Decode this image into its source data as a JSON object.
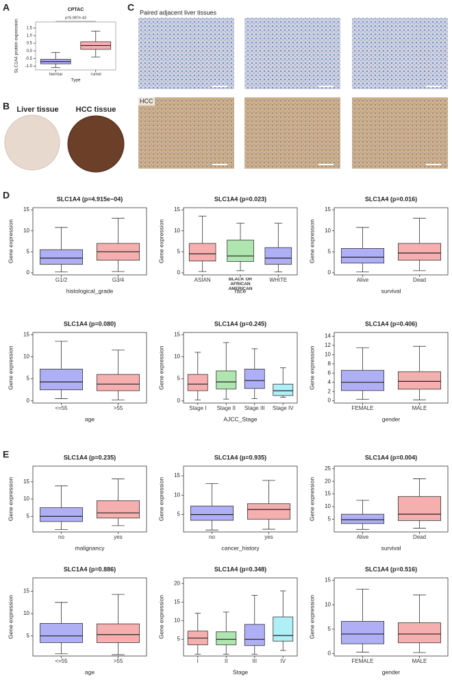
{
  "figure": {
    "panel_labels": [
      "A",
      "B",
      "C",
      "D",
      "E"
    ],
    "image_labels": {
      "liver": "Liver tissue",
      "hcc_b": "HCC tissue",
      "paired": "Paired adjacent liver tissues",
      "hcc_c": "HCC"
    }
  },
  "chart_data": [
    {
      "type": "box",
      "title": "CPTAC",
      "annotation": "p=5.087e-43",
      "ylabel": "SLC1A4 protein expression",
      "xlabel": "Type",
      "categories": [
        "Normal",
        "Tumor"
      ],
      "colors": [
        "#2323e0",
        "#e02020"
      ],
      "boxes": [
        {
          "q1": -0.85,
          "median": -0.7,
          "q3": -0.55,
          "whisker_low": -1.1,
          "whisker_high": -0.1
        },
        {
          "q1": 0.1,
          "median": 0.35,
          "q3": 0.6,
          "whisker_low": -0.4,
          "whisker_high": 1.3
        }
      ],
      "ylim": [
        -1.25,
        1.9
      ],
      "yticks": [
        {
          "value": -1,
          "label": "-1.0"
        },
        {
          "value": -0.5,
          "label": "-0.5"
        },
        {
          "value": 0,
          "label": "0.0"
        },
        {
          "value": 0.5,
          "label": "0.5"
        },
        {
          "value": 1,
          "label": "1.0"
        },
        {
          "value": 1.5,
          "label": "1.5"
        }
      ]
    },
    {
      "type": "box",
      "title": "SLC1A4 (p=4.915e−04)",
      "ylabel": "Gene expression",
      "xlabel": "histological_grade",
      "categories": [
        "G1/2",
        "G3/4"
      ],
      "colors": [
        "#1a1ae6",
        "#e61a1a"
      ],
      "boxes": [
        {
          "q1": 2,
          "median": 3.5,
          "q3": 5.5,
          "whisker_low": 0.2,
          "whisker_high": 10.8
        },
        {
          "q1": 3,
          "median": 5,
          "q3": 7,
          "whisker_low": 0.3,
          "whisker_high": 13
        }
      ],
      "ylim": [
        -0.5,
        15.5
      ],
      "yticks": [
        0,
        5,
        10,
        15
      ]
    },
    {
      "type": "box",
      "title": "SLC1A4 (p=0.023)",
      "ylabel": "Gene expression",
      "xlabel": "race",
      "categories": [
        "ASIAN",
        "BLACK OR AFRICAN AMERICAN",
        "WHITE"
      ],
      "colors": [
        "#e61a1a",
        "#1ab41a",
        "#1a1ae6"
      ],
      "boxes": [
        {
          "q1": 2.8,
          "median": 4.5,
          "q3": 7,
          "whisker_low": 0.3,
          "whisker_high": 13.5
        },
        {
          "q1": 2.7,
          "median": 4,
          "q3": 7.8,
          "whisker_low": 0.5,
          "whisker_high": 11.8
        },
        {
          "q1": 2,
          "median": 3.5,
          "q3": 6,
          "whisker_low": 0.2,
          "whisker_high": 11.8
        }
      ],
      "ylim": [
        -0.5,
        15.5
      ],
      "yticks": [
        0,
        5,
        10,
        15
      ]
    },
    {
      "type": "box",
      "title": "SLC1A4 (p=0.016)",
      "ylabel": "Gene expression",
      "xlabel": "survival",
      "categories": [
        "Alive",
        "Dead"
      ],
      "colors": [
        "#1a1ae6",
        "#e61a1a"
      ],
      "boxes": [
        {
          "q1": 2.3,
          "median": 3.7,
          "q3": 5.8,
          "whisker_low": 0.2,
          "whisker_high": 10.8
        },
        {
          "q1": 3,
          "median": 4.7,
          "q3": 7,
          "whisker_low": 0.5,
          "whisker_high": 13
        }
      ],
      "ylim": [
        -0.5,
        15.5
      ],
      "yticks": [
        0,
        5,
        10,
        15
      ]
    },
    {
      "type": "box",
      "title": "SLC1A4 (p=0.080)",
      "ylabel": "Gene expression",
      "xlabel": "age",
      "categories": [
        "<=55",
        ">55"
      ],
      "colors": [
        "#1a1ae6",
        "#e61a1a"
      ],
      "boxes": [
        {
          "q1": 2.5,
          "median": 4.3,
          "q3": 7.2,
          "whisker_low": 0.5,
          "whisker_high": 13.5
        },
        {
          "q1": 2.3,
          "median": 3.8,
          "q3": 6,
          "whisker_low": 0.2,
          "whisker_high": 11.5
        }
      ],
      "ylim": [
        -0.5,
        15.5
      ],
      "yticks": [
        0,
        5,
        10,
        15
      ]
    },
    {
      "type": "box",
      "title": "SLC1A4 (p=0.245)",
      "ylabel": "Gene expression",
      "xlabel": "AJCC_Stage",
      "categories": [
        "Stage I",
        "Stage II",
        "Stage III",
        "Stage IV"
      ],
      "colors": [
        "#e61a1a",
        "#1ab41a",
        "#1a1ae6",
        "#1ad2e6"
      ],
      "boxes": [
        {
          "q1": 2.3,
          "median": 3.8,
          "q3": 6,
          "whisker_low": 0.2,
          "whisker_high": 11
        },
        {
          "q1": 2.7,
          "median": 4.3,
          "q3": 6.8,
          "whisker_low": 0.4,
          "whisker_high": 13.2
        },
        {
          "q1": 2.8,
          "median": 4.6,
          "q3": 7.2,
          "whisker_low": 0.5,
          "whisker_high": 11.8
        },
        {
          "q1": 1.2,
          "median": 2.3,
          "q3": 3.8,
          "whisker_low": 0.8,
          "whisker_high": 7.5
        }
      ],
      "ylim": [
        -0.5,
        15.5
      ],
      "yticks": [
        0,
        5,
        10,
        15
      ]
    },
    {
      "type": "box",
      "title": "SLC1A4 (p=0.406)",
      "ylabel": "Gene expression",
      "xlabel": "gender",
      "categories": [
        "FEMALE",
        "MALE"
      ],
      "colors": [
        "#1a1ae6",
        "#e61a1a"
      ],
      "boxes": [
        {
          "q1": 2.2,
          "median": 4,
          "q3": 6.6,
          "whisker_low": 0.3,
          "whisker_high": 11.5
        },
        {
          "q1": 2.5,
          "median": 4.2,
          "q3": 6.3,
          "whisker_low": 0.2,
          "whisker_high": 11.8
        }
      ],
      "ylim": [
        -0.5,
        14.8
      ],
      "yticks": [
        0,
        2,
        4,
        6,
        8,
        10,
        12,
        14
      ]
    },
    {
      "type": "box",
      "title": "SLC1A4 (p=0.235)",
      "ylabel": "Gene expression",
      "xlabel": "malignancy",
      "categories": [
        "no",
        "yes"
      ],
      "colors": [
        "#1a1ae6",
        "#e61a1a"
      ],
      "boxes": [
        {
          "q1": 3.5,
          "median": 5,
          "q3": 7.5,
          "whisker_low": 1.2,
          "whisker_high": 13.8
        },
        {
          "q1": 4.5,
          "median": 6,
          "q3": 9.5,
          "whisker_low": 2.3,
          "whisker_high": 15.8
        }
      ],
      "ylim": [
        0.5,
        19.5
      ],
      "yticks": [
        5,
        10,
        15
      ]
    },
    {
      "type": "box",
      "title": "SLC1A4 (p=0.935)",
      "ylabel": "Gene expression",
      "xlabel": "cancer_history",
      "categories": [
        "no",
        "yes"
      ],
      "colors": [
        "#1a1ae6",
        "#e61a1a"
      ],
      "boxes": [
        {
          "q1": 3.5,
          "median": 5,
          "q3": 7.2,
          "whisker_low": 1,
          "whisker_high": 13
        },
        {
          "q1": 3.8,
          "median": 6.3,
          "q3": 7.8,
          "whisker_low": 1.2,
          "whisker_high": 13.8
        }
      ],
      "ylim": [
        0.5,
        17.5
      ],
      "yticks": [
        5,
        10,
        15
      ]
    },
    {
      "type": "box",
      "title": "SLC1A4 (p=0.004)",
      "ylabel": "Gene expression",
      "xlabel": "survival",
      "categories": [
        "Alive",
        "Dead"
      ],
      "colors": [
        "#1a1ae6",
        "#e61a1a"
      ],
      "boxes": [
        {
          "q1": 3.3,
          "median": 4.8,
          "q3": 7,
          "whisker_low": 1,
          "whisker_high": 12.5
        },
        {
          "q1": 4.5,
          "median": 7,
          "q3": 14,
          "whisker_low": 1.5,
          "whisker_high": 21
        }
      ],
      "ylim": [
        0,
        26
      ],
      "yticks": [
        5,
        10,
        15,
        20,
        25
      ]
    },
    {
      "type": "box",
      "title": "SLC1A4 (p=0.886)",
      "ylabel": "Gene expression",
      "xlabel": "age",
      "categories": [
        "<=55",
        ">55"
      ],
      "colors": [
        "#1a1ae6",
        "#e61a1a"
      ],
      "boxes": [
        {
          "q1": 3.5,
          "median": 5,
          "q3": 7.8,
          "whisker_low": 1,
          "whisker_high": 12.5
        },
        {
          "q1": 3.5,
          "median": 5.3,
          "q3": 7.7,
          "whisker_low": 0.8,
          "whisker_high": 14.3
        }
      ],
      "ylim": [
        0.5,
        18
      ],
      "yticks": [
        5,
        10,
        15
      ]
    },
    {
      "type": "box",
      "title": "SLC1A4 (p=0.348)",
      "ylabel": "Gene expression",
      "xlabel": "Stage",
      "categories": [
        "I",
        "II",
        "III",
        "IV"
      ],
      "colors": [
        "#e61a1a",
        "#1ab41a",
        "#1a1ae6",
        "#1ad2e6"
      ],
      "boxes": [
        {
          "q1": 3.5,
          "median": 5.3,
          "q3": 7.2,
          "whisker_low": 1,
          "whisker_high": 12
        },
        {
          "q1": 3.5,
          "median": 5,
          "q3": 7,
          "whisker_low": 1,
          "whisker_high": 12.3
        },
        {
          "q1": 3.3,
          "median": 5,
          "q3": 9,
          "whisker_low": 1,
          "whisker_high": 16.8
        },
        {
          "q1": 4.5,
          "median": 6,
          "q3": 11,
          "whisker_low": 2,
          "whisker_high": 18
        }
      ],
      "ylim": [
        0.5,
        21.5
      ],
      "yticks": [
        5,
        10,
        15,
        20
      ]
    },
    {
      "type": "box",
      "title": "SLC1A4 (p=0.516)",
      "ylabel": "Gene expression",
      "xlabel": "gender",
      "categories": [
        "FEMALE",
        "MALE"
      ],
      "colors": [
        "#1a1ae6",
        "#e61a1a"
      ],
      "boxes": [
        {
          "q1": 2,
          "median": 4,
          "q3": 6.6,
          "whisker_low": 0.3,
          "whisker_high": 13.2
        },
        {
          "q1": 2.2,
          "median": 4,
          "q3": 6.3,
          "whisker_low": 0.2,
          "whisker_high": 12
        }
      ],
      "ylim": [
        -0.5,
        15.5
      ],
      "yticks": [
        0,
        5,
        10,
        15
      ]
    }
  ]
}
